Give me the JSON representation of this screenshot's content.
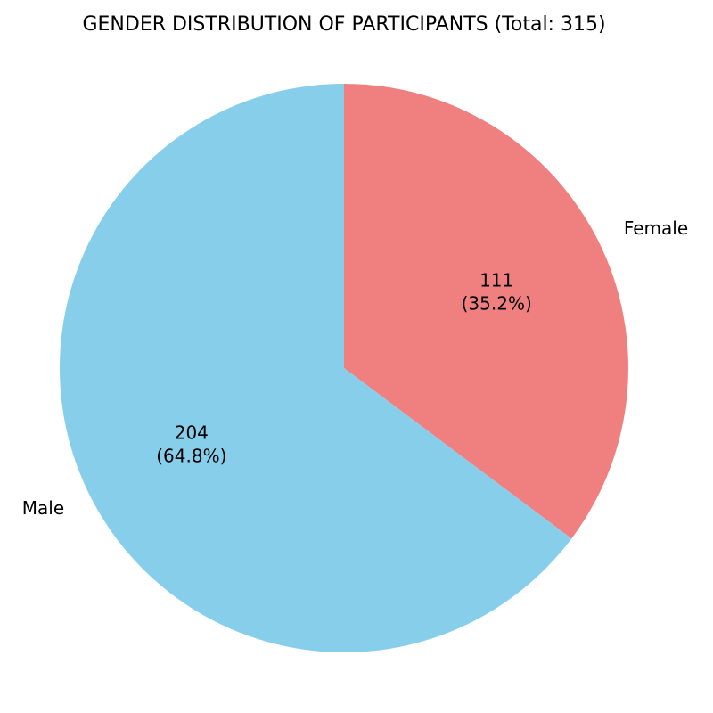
{
  "chart_data": {
    "type": "pie",
    "title": "GENDER DISTRIBUTION OF PARTICIPANTS (Total: 315)",
    "start_angle_deg": 90,
    "direction": "clockwise",
    "slices": [
      {
        "label": "Female",
        "value": 111,
        "value_text": "111",
        "pct_text": "(35.2%)",
        "color": "#F08080"
      },
      {
        "label": "Male",
        "value": 204,
        "value_text": "204",
        "pct_text": "(64.8%)",
        "color": "#87CEEB"
      }
    ]
  }
}
